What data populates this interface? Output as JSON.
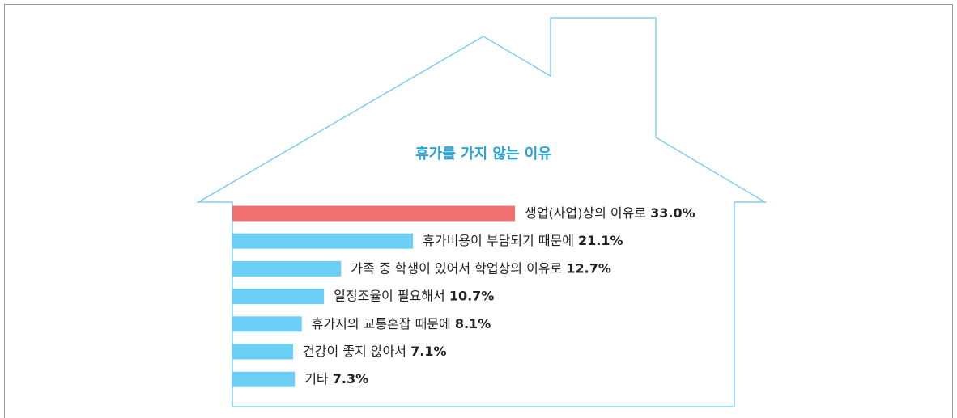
{
  "chart_data": {
    "type": "bar",
    "orientation": "horizontal",
    "title": "휴가를 가지 않는 이유",
    "categories": [
      "생업(사업)상의 이유로",
      "휴가비용이 부담되기 때문에",
      "가족 중 학생이 있어서 학업상의 이유로",
      "일정조율이 필요해서",
      "휴가지의 교통혼잡 때문에",
      "건강이 좋지 않아서",
      "기타"
    ],
    "values": [
      33.0,
      21.1,
      12.7,
      10.7,
      8.1,
      7.1,
      7.3
    ],
    "value_labels": [
      "33.0%",
      "21.1%",
      "12.7%",
      "10.7%",
      "8.1%",
      "7.1%",
      "7.3%"
    ],
    "colors": [
      "#f07070",
      "#6ccff6",
      "#6ccff6",
      "#6ccff6",
      "#6ccff6",
      "#6ccff6",
      "#6ccff6"
    ]
  }
}
